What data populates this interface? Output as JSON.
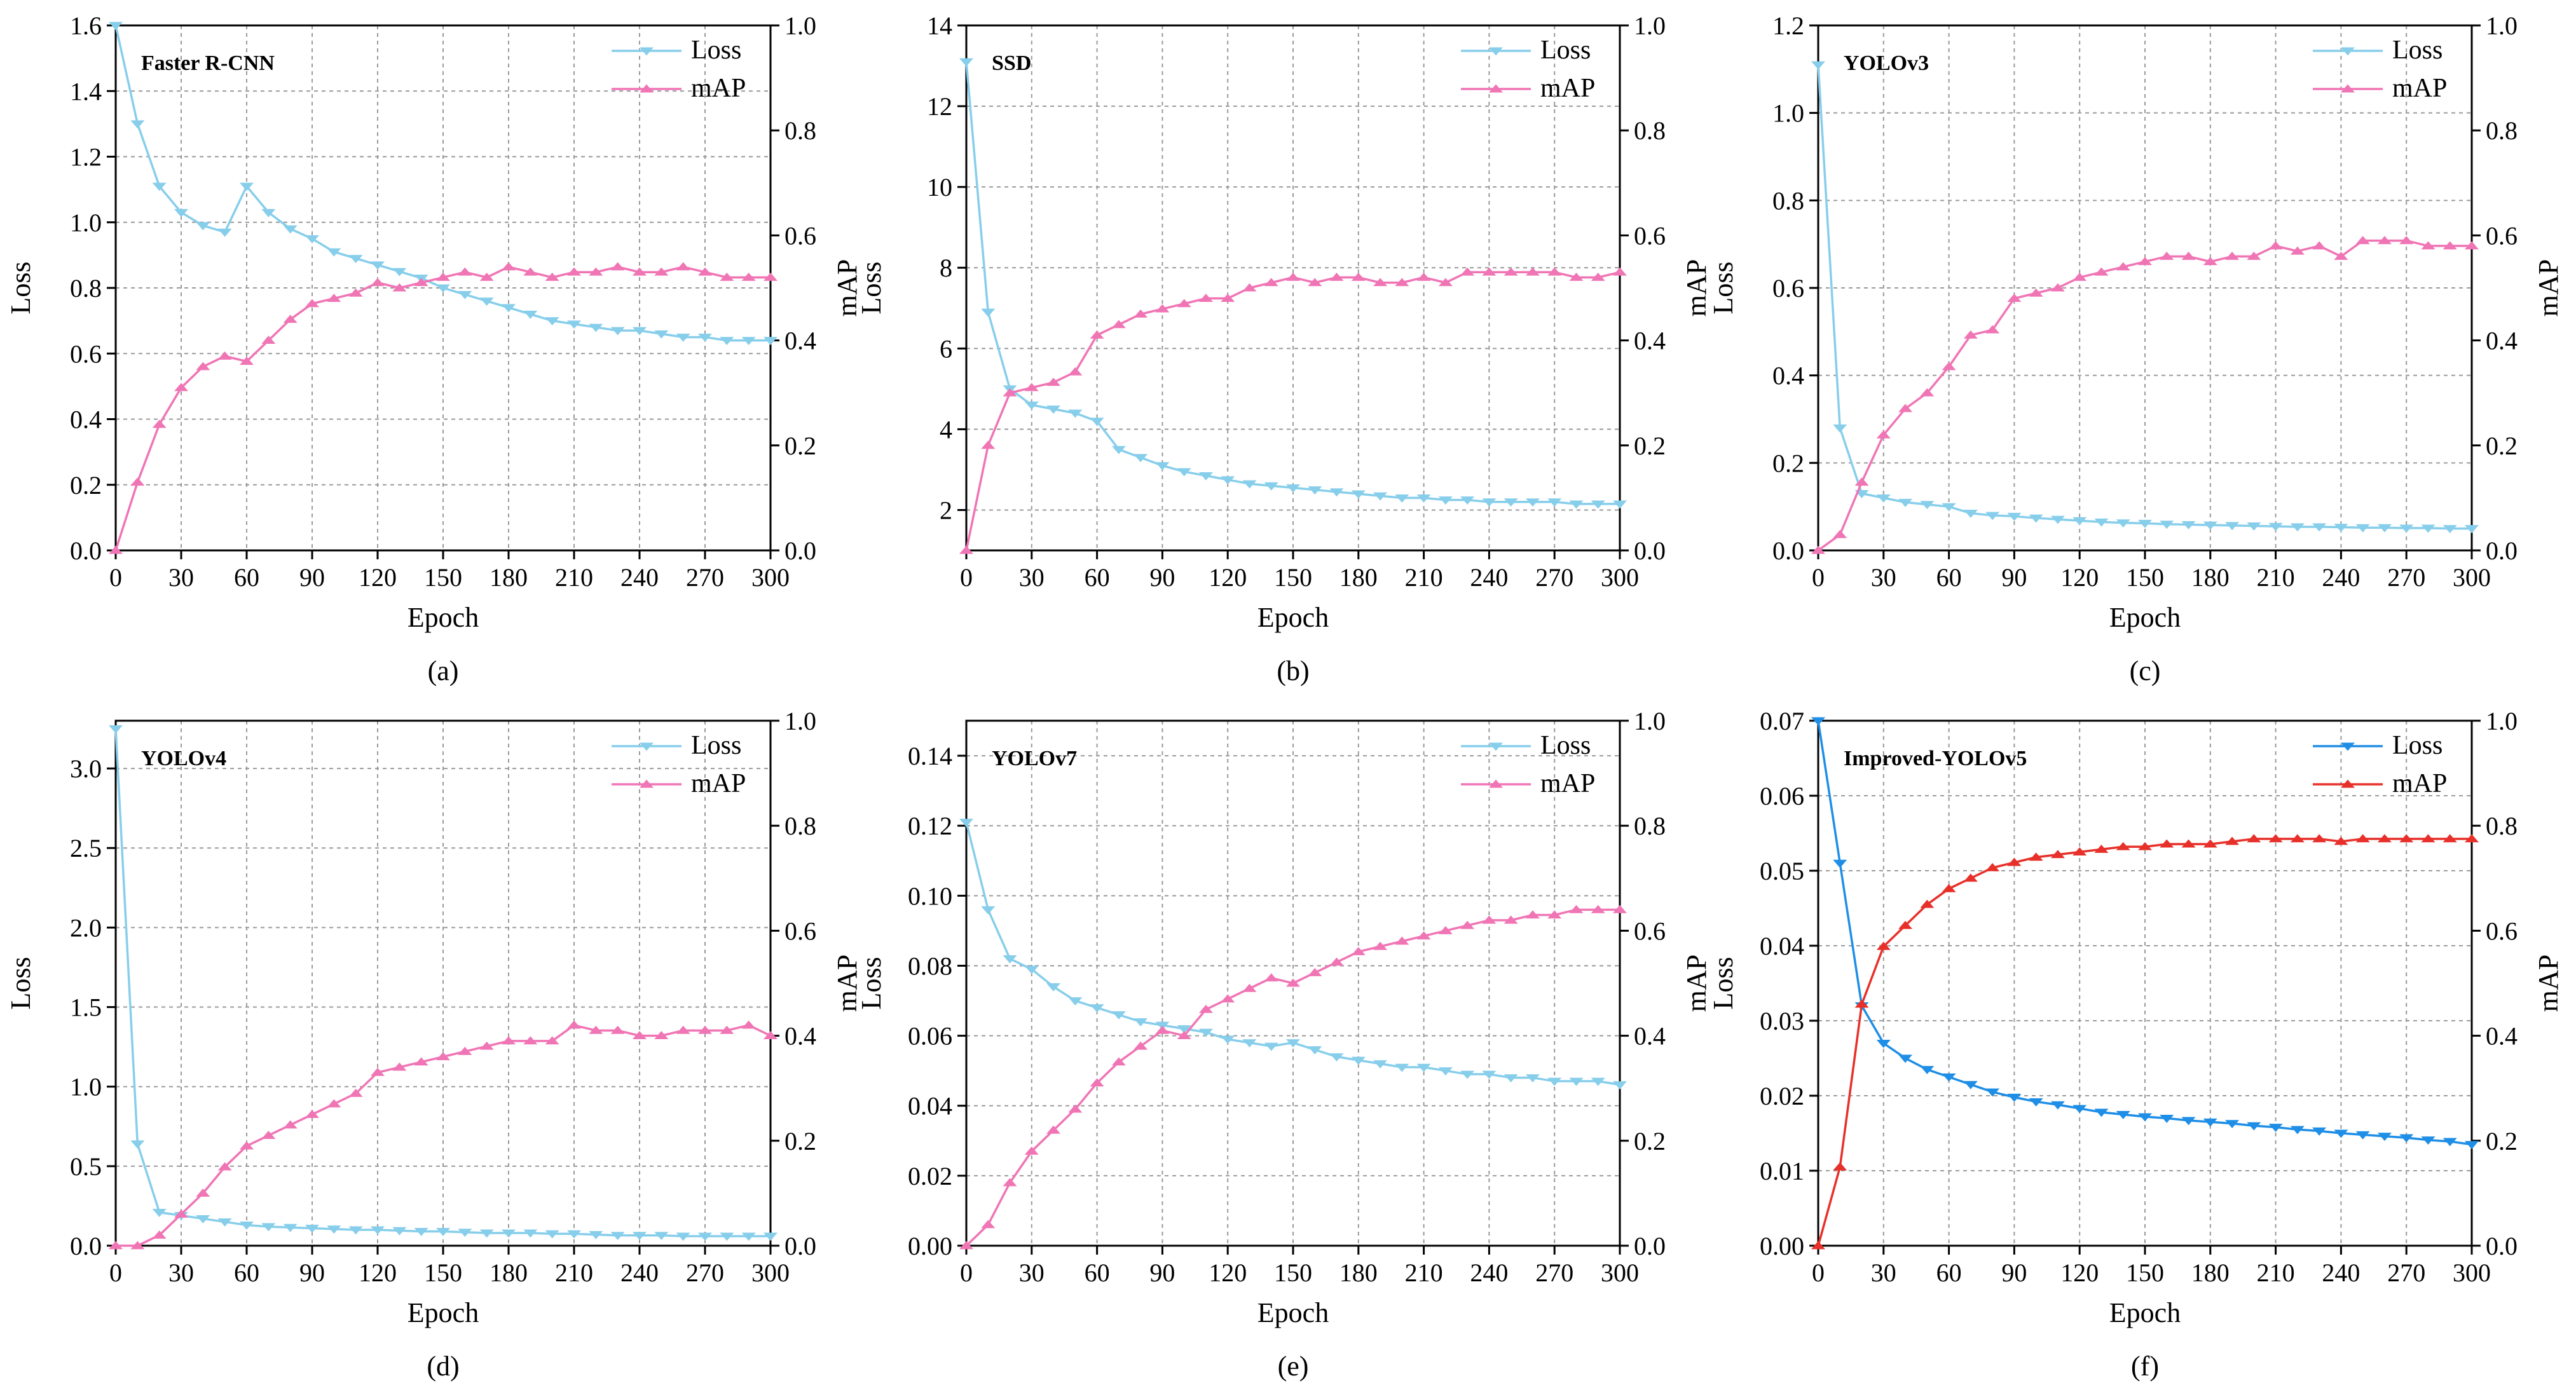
{
  "figure": {
    "x_label": "Epoch",
    "y_left_label": "Loss",
    "y_right_label": "mAP",
    "legend_loss": "Loss",
    "legend_map": "mAP"
  },
  "colors": {
    "loss_default": "#87CEEB",
    "map_default": "#F075B5",
    "loss_improved": "#1E8EE6",
    "map_improved": "#E8302A",
    "grid": "#9a9a9a"
  },
  "chart_data": [
    {
      "type": "line",
      "panel": "(a)",
      "title": "Faster R-CNN",
      "x": [
        0,
        10,
        20,
        30,
        40,
        50,
        60,
        70,
        80,
        90,
        100,
        110,
        120,
        130,
        140,
        150,
        160,
        170,
        180,
        190,
        200,
        210,
        220,
        230,
        240,
        250,
        260,
        270,
        280,
        290,
        300
      ],
      "x_ticks": [
        0,
        30,
        60,
        90,
        120,
        150,
        180,
        210,
        240,
        270,
        300
      ],
      "xlim": [
        0,
        300
      ],
      "y_left": {
        "ylim": [
          0,
          1.6
        ],
        "ticks": [
          "0.0",
          "0.2",
          "0.4",
          "0.6",
          "0.8",
          "1.0",
          "1.2",
          "1.4",
          "1.6"
        ]
      },
      "y_right": {
        "ylim": [
          0,
          1.0
        ],
        "ticks": [
          "0.0",
          "0.2",
          "0.4",
          "0.6",
          "0.8",
          "1.0"
        ]
      },
      "series": [
        {
          "name": "Loss",
          "axis": "left",
          "marker": "triangle-down",
          "values": [
            1.61,
            1.3,
            1.11,
            1.03,
            0.99,
            0.97,
            1.11,
            1.03,
            0.98,
            0.95,
            0.91,
            0.89,
            0.87,
            0.85,
            0.83,
            0.8,
            0.78,
            0.76,
            0.74,
            0.72,
            0.7,
            0.69,
            0.68,
            0.67,
            0.67,
            0.66,
            0.65,
            0.65,
            0.64,
            0.64,
            0.64
          ]
        },
        {
          "name": "mAP",
          "axis": "right",
          "marker": "triangle-up",
          "values": [
            0.0,
            0.13,
            0.24,
            0.31,
            0.35,
            0.37,
            0.36,
            0.4,
            0.44,
            0.47,
            0.48,
            0.49,
            0.51,
            0.5,
            0.51,
            0.52,
            0.53,
            0.52,
            0.54,
            0.53,
            0.52,
            0.53,
            0.53,
            0.54,
            0.53,
            0.53,
            0.54,
            0.53,
            0.52,
            0.52,
            0.52
          ]
        }
      ]
    },
    {
      "type": "line",
      "panel": "(b)",
      "title": "SSD",
      "x": [
        0,
        10,
        20,
        30,
        40,
        50,
        60,
        70,
        80,
        90,
        100,
        110,
        120,
        130,
        140,
        150,
        160,
        170,
        180,
        190,
        200,
        210,
        220,
        230,
        240,
        250,
        260,
        270,
        280,
        290,
        300
      ],
      "x_ticks": [
        0,
        30,
        60,
        90,
        120,
        150,
        180,
        210,
        240,
        270,
        300
      ],
      "xlim": [
        0,
        300
      ],
      "y_left": {
        "ylim": [
          1,
          14
        ],
        "ticks": [
          "2",
          "4",
          "6",
          "8",
          "10",
          "12",
          "14"
        ]
      },
      "y_right": {
        "ylim": [
          0,
          1.0
        ],
        "ticks": [
          "0.0",
          "0.2",
          "0.4",
          "0.6",
          "0.8",
          "1.0"
        ]
      },
      "series": [
        {
          "name": "Loss",
          "axis": "left",
          "marker": "triangle-down",
          "values": [
            13.1,
            6.9,
            5.0,
            4.6,
            4.5,
            4.4,
            4.2,
            3.5,
            3.3,
            3.1,
            2.95,
            2.85,
            2.75,
            2.65,
            2.6,
            2.55,
            2.5,
            2.45,
            2.4,
            2.35,
            2.3,
            2.3,
            2.25,
            2.25,
            2.2,
            2.2,
            2.2,
            2.2,
            2.15,
            2.15,
            2.15
          ]
        },
        {
          "name": "mAP",
          "axis": "right",
          "marker": "triangle-up",
          "values": [
            0.0,
            0.2,
            0.3,
            0.31,
            0.32,
            0.34,
            0.41,
            0.43,
            0.45,
            0.46,
            0.47,
            0.48,
            0.48,
            0.5,
            0.51,
            0.52,
            0.51,
            0.52,
            0.52,
            0.51,
            0.51,
            0.52,
            0.51,
            0.53,
            0.53,
            0.53,
            0.53,
            0.53,
            0.52,
            0.52,
            0.53
          ]
        }
      ]
    },
    {
      "type": "line",
      "panel": "(c)",
      "title": "YOLOv3",
      "x": [
        0,
        10,
        20,
        30,
        40,
        50,
        60,
        70,
        80,
        90,
        100,
        110,
        120,
        130,
        140,
        150,
        160,
        170,
        180,
        190,
        200,
        210,
        220,
        230,
        240,
        250,
        260,
        270,
        280,
        290,
        300
      ],
      "x_ticks": [
        0,
        30,
        60,
        90,
        120,
        150,
        180,
        210,
        240,
        270,
        300
      ],
      "xlim": [
        0,
        300
      ],
      "y_left": {
        "ylim": [
          0,
          1.2
        ],
        "ticks": [
          "0.0",
          "0.2",
          "0.4",
          "0.6",
          "0.8",
          "1.0",
          "1.2"
        ]
      },
      "y_right": {
        "ylim": [
          0,
          1.0
        ],
        "ticks": [
          "0.0",
          "0.2",
          "0.4",
          "0.6",
          "0.8",
          "1.0"
        ]
      },
      "series": [
        {
          "name": "Loss",
          "axis": "left",
          "marker": "triangle-down",
          "values": [
            1.11,
            0.28,
            0.13,
            0.12,
            0.11,
            0.105,
            0.1,
            0.085,
            0.08,
            0.078,
            0.074,
            0.071,
            0.068,
            0.065,
            0.063,
            0.062,
            0.06,
            0.059,
            0.058,
            0.057,
            0.056,
            0.055,
            0.054,
            0.054,
            0.053,
            0.052,
            0.052,
            0.051,
            0.051,
            0.05,
            0.05
          ]
        },
        {
          "name": "mAP",
          "axis": "right",
          "marker": "triangle-up",
          "values": [
            0.0,
            0.03,
            0.13,
            0.22,
            0.27,
            0.3,
            0.35,
            0.41,
            0.42,
            0.48,
            0.49,
            0.5,
            0.52,
            0.53,
            0.54,
            0.55,
            0.56,
            0.56,
            0.55,
            0.56,
            0.56,
            0.58,
            0.57,
            0.58,
            0.56,
            0.59,
            0.59,
            0.59,
            0.58,
            0.58,
            0.58
          ]
        }
      ]
    },
    {
      "type": "line",
      "panel": "(d)",
      "title": "YOLOv4",
      "x": [
        0,
        10,
        20,
        30,
        40,
        50,
        60,
        70,
        80,
        90,
        100,
        110,
        120,
        130,
        140,
        150,
        160,
        170,
        180,
        190,
        200,
        210,
        220,
        230,
        240,
        250,
        260,
        270,
        280,
        290,
        300
      ],
      "x_ticks": [
        0,
        30,
        60,
        90,
        120,
        150,
        180,
        210,
        240,
        270,
        300
      ],
      "xlim": [
        0,
        300
      ],
      "y_left": {
        "ylim": [
          0,
          3.3
        ],
        "ticks": [
          "0.0",
          "0.5",
          "1.0",
          "1.5",
          "2.0",
          "2.5",
          "3.0"
        ]
      },
      "y_right": {
        "ylim": [
          0,
          1.0
        ],
        "ticks": [
          "0.0",
          "0.2",
          "0.4",
          "0.6",
          "0.8",
          "1.0"
        ]
      },
      "series": [
        {
          "name": "Loss",
          "axis": "left",
          "marker": "triangle-down",
          "values": [
            3.25,
            0.64,
            0.21,
            0.19,
            0.17,
            0.15,
            0.13,
            0.12,
            0.115,
            0.11,
            0.105,
            0.1,
            0.1,
            0.095,
            0.09,
            0.09,
            0.085,
            0.08,
            0.08,
            0.08,
            0.075,
            0.075,
            0.07,
            0.065,
            0.065,
            0.065,
            0.06,
            0.06,
            0.06,
            0.06,
            0.06
          ]
        },
        {
          "name": "mAP",
          "axis": "right",
          "marker": "triangle-up",
          "values": [
            0.0,
            0.0,
            0.02,
            0.06,
            0.1,
            0.15,
            0.19,
            0.21,
            0.23,
            0.25,
            0.27,
            0.29,
            0.33,
            0.34,
            0.35,
            0.36,
            0.37,
            0.38,
            0.39,
            0.39,
            0.39,
            0.42,
            0.41,
            0.41,
            0.4,
            0.4,
            0.41,
            0.41,
            0.41,
            0.42,
            0.4
          ]
        }
      ]
    },
    {
      "type": "line",
      "panel": "(e)",
      "title": "YOLOv7",
      "x": [
        0,
        10,
        20,
        30,
        40,
        50,
        60,
        70,
        80,
        90,
        100,
        110,
        120,
        130,
        140,
        150,
        160,
        170,
        180,
        190,
        200,
        210,
        220,
        230,
        240,
        250,
        260,
        270,
        280,
        290,
        300
      ],
      "x_ticks": [
        0,
        30,
        60,
        90,
        120,
        150,
        180,
        210,
        240,
        270,
        300
      ],
      "xlim": [
        0,
        300
      ],
      "y_left": {
        "ylim": [
          0,
          0.15
        ],
        "ticks": [
          "0.00",
          "0.02",
          "0.04",
          "0.06",
          "0.08",
          "0.10",
          "0.12",
          "0.14"
        ]
      },
      "y_right": {
        "ylim": [
          0,
          1.0
        ],
        "ticks": [
          "0.0",
          "0.2",
          "0.4",
          "0.6",
          "0.8",
          "1.0"
        ]
      },
      "series": [
        {
          "name": "Loss",
          "axis": "left",
          "marker": "triangle-down",
          "values": [
            0.121,
            0.096,
            0.082,
            0.079,
            0.074,
            0.07,
            0.068,
            0.066,
            0.064,
            0.063,
            0.062,
            0.061,
            0.059,
            0.058,
            0.057,
            0.058,
            0.056,
            0.054,
            0.053,
            0.052,
            0.051,
            0.051,
            0.05,
            0.049,
            0.049,
            0.048,
            0.048,
            0.047,
            0.047,
            0.047,
            0.046
          ]
        },
        {
          "name": "mAP",
          "axis": "right",
          "marker": "triangle-up",
          "values": [
            0.0,
            0.04,
            0.12,
            0.18,
            0.22,
            0.26,
            0.31,
            0.35,
            0.38,
            0.41,
            0.4,
            0.45,
            0.47,
            0.49,
            0.51,
            0.5,
            0.52,
            0.54,
            0.56,
            0.57,
            0.58,
            0.59,
            0.6,
            0.61,
            0.62,
            0.62,
            0.63,
            0.63,
            0.64,
            0.64,
            0.64
          ]
        }
      ]
    },
    {
      "type": "line",
      "panel": "(f)",
      "title": "Improved-YOLOv5",
      "x": [
        0,
        10,
        20,
        30,
        40,
        50,
        60,
        70,
        80,
        90,
        100,
        110,
        120,
        130,
        140,
        150,
        160,
        170,
        180,
        190,
        200,
        210,
        220,
        230,
        240,
        250,
        260,
        270,
        280,
        290,
        300
      ],
      "x_ticks": [
        0,
        30,
        60,
        90,
        120,
        150,
        180,
        210,
        240,
        270,
        300
      ],
      "xlim": [
        0,
        300
      ],
      "y_left": {
        "ylim": [
          0,
          0.07
        ],
        "ticks": [
          "0.00",
          "0.01",
          "0.02",
          "0.03",
          "0.04",
          "0.05",
          "0.06",
          "0.07"
        ]
      },
      "y_right": {
        "ylim": [
          0,
          1.0
        ],
        "ticks": [
          "0.0",
          "0.2",
          "0.4",
          "0.6",
          "0.8",
          "1.0"
        ]
      },
      "series": [
        {
          "name": "Loss",
          "axis": "left",
          "marker": "triangle-down",
          "values": [
            0.07,
            0.051,
            0.032,
            0.027,
            0.025,
            0.0235,
            0.0225,
            0.0215,
            0.0205,
            0.0198,
            0.0192,
            0.0188,
            0.0183,
            0.0178,
            0.0175,
            0.0172,
            0.017,
            0.0167,
            0.0165,
            0.0163,
            0.016,
            0.0158,
            0.0155,
            0.0153,
            0.015,
            0.0148,
            0.0146,
            0.0144,
            0.0141,
            0.0139,
            0.0135
          ]
        },
        {
          "name": "mAP",
          "axis": "right",
          "marker": "triangle-up",
          "values": [
            0.0,
            0.15,
            0.46,
            0.57,
            0.61,
            0.65,
            0.68,
            0.7,
            0.72,
            0.73,
            0.74,
            0.745,
            0.75,
            0.755,
            0.76,
            0.76,
            0.765,
            0.765,
            0.765,
            0.77,
            0.775,
            0.775,
            0.775,
            0.775,
            0.77,
            0.775,
            0.775,
            0.775,
            0.775,
            0.775,
            0.775
          ]
        }
      ]
    }
  ]
}
